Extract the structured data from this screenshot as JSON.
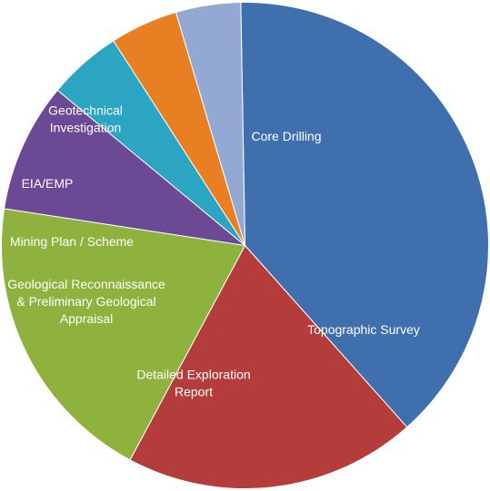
{
  "chart_data": {
    "type": "pie",
    "title": "",
    "legend": "none",
    "start_angle_deg": 91,
    "slices": [
      {
        "name": "Core Drilling",
        "value": 38.7,
        "color": "#3f6fad",
        "label_lines": [
          "Core Drilling"
        ]
      },
      {
        "name": "Topographic Survey",
        "value": 19.4,
        "color": "#b43d3b",
        "label_lines": [
          "Topographic Survey"
        ]
      },
      {
        "name": "Detailed Exploration Report",
        "value": 19.6,
        "color": "#8fb23e",
        "label_lines": [
          "Detailed Exploration",
          "Report"
        ]
      },
      {
        "name": "Geological Reconnaissance & Preliminary Geological Appraisal",
        "value": 8.6,
        "color": "#6b4994",
        "label_lines": [
          "Geological Reconnaissance",
          "& Preliminary Geological",
          "Appraisal"
        ]
      },
      {
        "name": "Mining Plan / Scheme",
        "value": 4.9,
        "color": "#2ba5c2",
        "label_lines": [
          "Mining Plan / Scheme"
        ]
      },
      {
        "name": "EIA/EMP",
        "value": 4.5,
        "color": "#e87f22",
        "label_lines": [
          "EIA/EMP"
        ]
      },
      {
        "name": "Geotechnical Investigation",
        "value": 4.3,
        "color": "#93a9d4",
        "label_lines": [
          "Geotechnical",
          "Investigation"
        ]
      }
    ]
  }
}
